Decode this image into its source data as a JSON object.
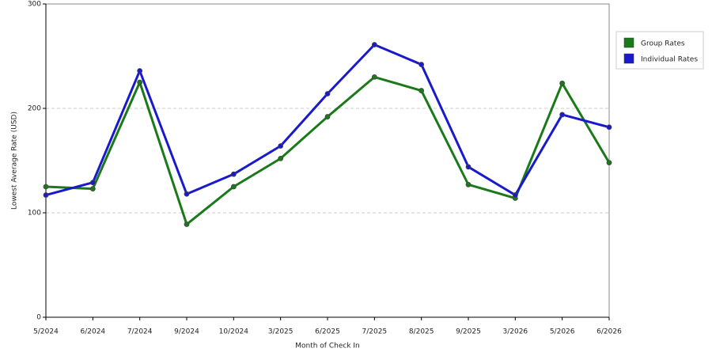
{
  "chart_data": {
    "type": "line",
    "x_label": "Month of Check In",
    "y_label": "Lowest Average Rate (USD)",
    "categories": [
      "5/2024",
      "6/2024",
      "7/2024",
      "9/2024",
      "10/2024",
      "3/2025",
      "6/2025",
      "7/2025",
      "8/2025",
      "9/2025",
      "3/2026",
      "5/2026",
      "6/2026"
    ],
    "series": [
      {
        "name": "Group Rates",
        "color": "#1a7a1a",
        "values": [
          125,
          123,
          225,
          89,
          125,
          152,
          192,
          230,
          217,
          127,
          114,
          224,
          148
        ]
      },
      {
        "name": "Individual Rates",
        "color": "#1a1acc",
        "values": [
          117,
          129,
          236,
          118,
          137,
          164,
          214,
          261,
          242,
          144,
          117,
          194,
          182
        ]
      }
    ],
    "ylim": [
      0,
      300
    ],
    "yticks": [
      0,
      100,
      200,
      300
    ],
    "grid": true,
    "legend": "right"
  }
}
